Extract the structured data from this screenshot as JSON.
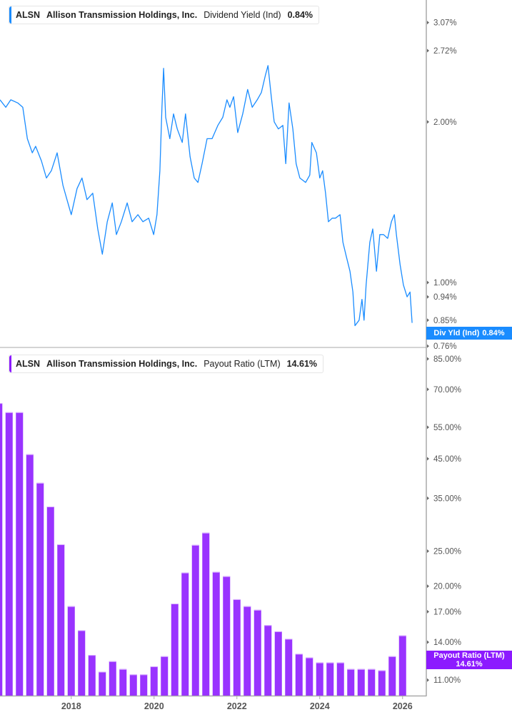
{
  "colors": {
    "yield_line": "#1a8cff",
    "payout_bar": "#9933ff",
    "payout_badge": "#8c1aff",
    "axis": "#aaaaaa"
  },
  "legend_top": {
    "ticker": "ALSN",
    "company": "Allison Transmission Holdings, Inc.",
    "metric": "Dividend Yield (Ind)",
    "value": "0.84%"
  },
  "legend_bottom": {
    "ticker": "ALSN",
    "company": "Allison Transmission Holdings, Inc.",
    "metric": "Payout Ratio (LTM)",
    "value": "14.61%"
  },
  "badge_top": {
    "label": "Div Yld (Ind)",
    "value": "0.84%"
  },
  "badge_bottom": {
    "label": "Payout Ratio (LTM)",
    "value": "14.61%"
  },
  "chart_data": [
    {
      "type": "line",
      "title": "",
      "series_label": "Dividend Yield (Ind)",
      "y_scale": "log",
      "ylim": [
        0.755,
        3.4
      ],
      "xlim": [
        2016.28,
        2026.5
      ],
      "y_ticks": [
        3.07,
        2.72,
        2.0,
        1.0,
        0.94,
        0.85,
        0.76
      ],
      "y_tick_labels": [
        "3.07%",
        "2.72%",
        "2.00%",
        "1.00%",
        "0.94%",
        "0.85%",
        "0.76%"
      ],
      "x": [
        2016.28,
        2016.42,
        2016.54,
        2016.71,
        2016.83,
        2016.94,
        2017.06,
        2017.14,
        2017.28,
        2017.4,
        2017.52,
        2017.66,
        2017.8,
        2017.92,
        2018.0,
        2018.14,
        2018.26,
        2018.38,
        2018.52,
        2018.64,
        2018.75,
        2018.87,
        2018.99,
        2019.09,
        2019.21,
        2019.35,
        2019.47,
        2019.61,
        2019.73,
        2019.87,
        2019.99,
        2020.07,
        2020.14,
        2020.19,
        2020.23,
        2020.28,
        2020.38,
        2020.47,
        2020.56,
        2020.68,
        2020.76,
        2020.87,
        2020.97,
        2021.06,
        2021.16,
        2021.28,
        2021.4,
        2021.54,
        2021.66,
        2021.76,
        2021.83,
        2021.92,
        2022.02,
        2022.14,
        2022.26,
        2022.37,
        2022.49,
        2022.59,
        2022.69,
        2022.75,
        2022.83,
        2022.9,
        2023.0,
        2023.11,
        2023.18,
        2023.26,
        2023.35,
        2023.43,
        2023.52,
        2023.66,
        2023.76,
        2023.81,
        2023.92,
        2024.0,
        2024.07,
        2024.14,
        2024.21,
        2024.3,
        2024.38,
        2024.49,
        2024.56,
        2024.64,
        2024.73,
        2024.8,
        2024.85,
        2024.95,
        2025.02,
        2025.07,
        2025.12,
        2025.21,
        2025.28,
        2025.37,
        2025.45,
        2025.54,
        2025.64,
        2025.73,
        2025.8,
        2025.85,
        2025.94,
        2026.02,
        2026.11,
        2026.18,
        2026.23
      ],
      "y": [
        2.2,
        2.13,
        2.2,
        2.17,
        2.13,
        1.86,
        1.75,
        1.8,
        1.69,
        1.57,
        1.62,
        1.75,
        1.52,
        1.41,
        1.34,
        1.5,
        1.57,
        1.43,
        1.47,
        1.26,
        1.13,
        1.3,
        1.41,
        1.23,
        1.3,
        1.41,
        1.3,
        1.34,
        1.3,
        1.32,
        1.23,
        1.34,
        1.62,
        2.13,
        2.52,
        2.04,
        1.86,
        2.07,
        1.94,
        1.83,
        2.07,
        1.72,
        1.57,
        1.54,
        1.67,
        1.86,
        1.86,
        1.97,
        2.04,
        2.2,
        2.13,
        2.23,
        1.91,
        2.07,
        2.3,
        2.13,
        2.2,
        2.27,
        2.45,
        2.55,
        2.23,
        2.0,
        1.94,
        1.97,
        1.67,
        2.17,
        1.94,
        1.67,
        1.57,
        1.54,
        1.59,
        1.83,
        1.75,
        1.57,
        1.62,
        1.47,
        1.3,
        1.32,
        1.32,
        1.34,
        1.19,
        1.12,
        1.05,
        0.96,
        0.83,
        0.85,
        0.93,
        0.85,
        0.99,
        1.19,
        1.26,
        1.05,
        1.23,
        1.23,
        1.21,
        1.3,
        1.34,
        1.23,
        1.08,
        0.99,
        0.94,
        0.96,
        0.84
      ]
    },
    {
      "type": "bar",
      "title": "",
      "series_label": "Payout Ratio (LTM)",
      "y_scale": "log",
      "ylim": [
        10.2,
        88
      ],
      "xlim": [
        2016.28,
        2026.5
      ],
      "y_ticks": [
        85,
        70,
        55,
        45,
        35,
        25,
        20,
        17,
        14,
        11
      ],
      "y_tick_labels": [
        "85.00%",
        "70.00%",
        "55.00%",
        "45.00%",
        "35.00%",
        "25.00%",
        "20.00%",
        "17.00%",
        "14.00%",
        "11.00%"
      ],
      "x_ticks": [
        2018,
        2020,
        2022,
        2024,
        2026
      ],
      "x_tick_labels": [
        "2018",
        "2020",
        "2022",
        "2024",
        "2026"
      ],
      "x": [
        2016.25,
        2016.5,
        2016.75,
        2017.0,
        2017.25,
        2017.5,
        2017.75,
        2018.0,
        2018.25,
        2018.5,
        2018.75,
        2019.0,
        2019.25,
        2019.5,
        2019.75,
        2020.0,
        2020.25,
        2020.5,
        2020.75,
        2021.0,
        2021.25,
        2021.5,
        2021.75,
        2022.0,
        2022.25,
        2022.5,
        2022.75,
        2023.0,
        2023.25,
        2023.5,
        2023.75,
        2024.0,
        2024.25,
        2024.5,
        2024.75,
        2025.0,
        2025.25,
        2025.5,
        2025.75,
        2026.0
      ],
      "values": [
        64.1,
        60.5,
        60.5,
        46.3,
        38.6,
        33.2,
        26.1,
        17.6,
        15.1,
        12.9,
        11.6,
        12.4,
        11.8,
        11.4,
        11.4,
        12.0,
        12.8,
        17.9,
        21.8,
        26.0,
        28.1,
        21.9,
        21.3,
        18.4,
        17.6,
        17.2,
        15.6,
        15.0,
        14.3,
        13.0,
        12.7,
        12.3,
        12.3,
        12.3,
        11.8,
        11.8,
        11.8,
        11.7,
        12.8,
        14.61
      ]
    }
  ]
}
